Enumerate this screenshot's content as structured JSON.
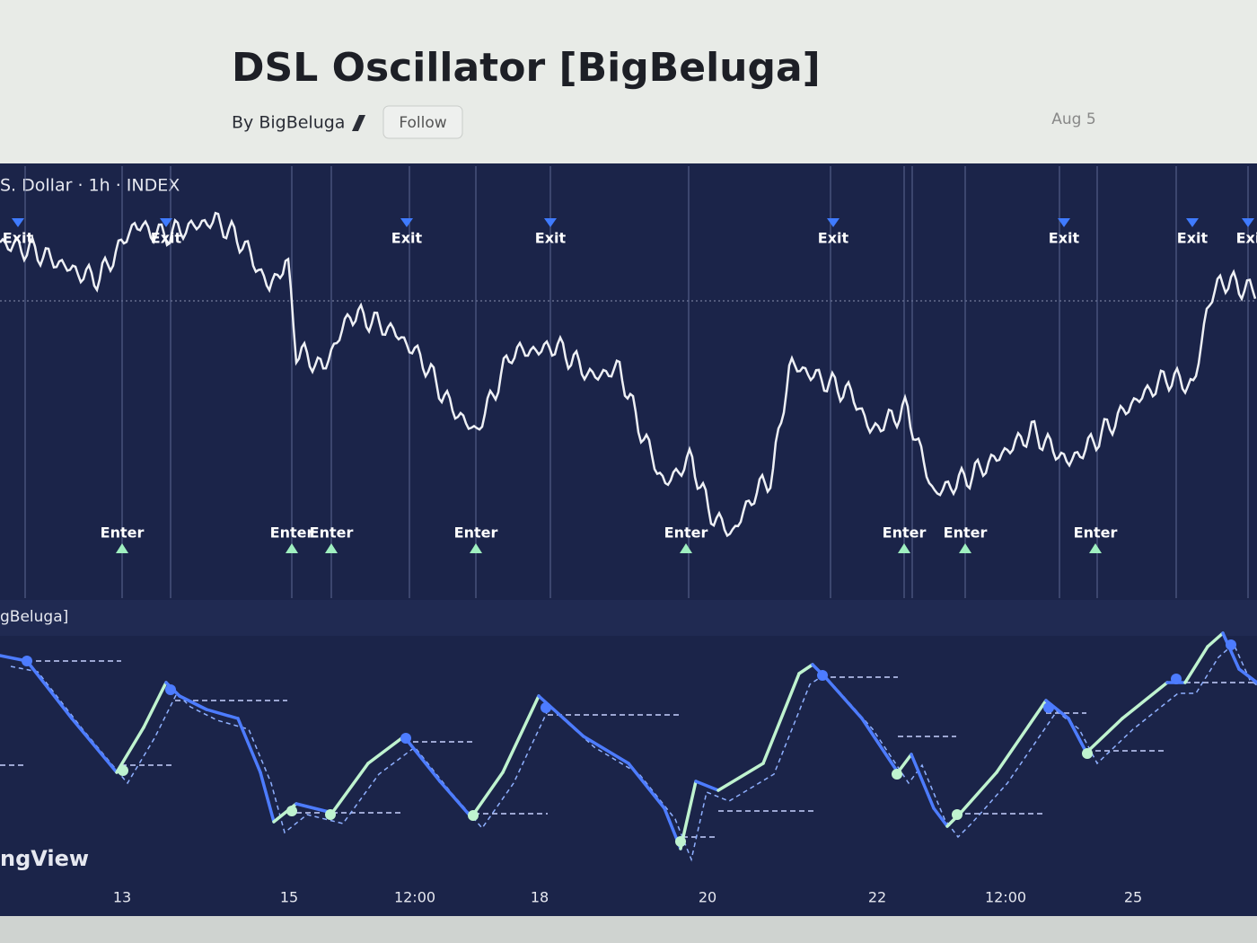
{
  "header": {
    "title": "DSL Oscillator [BigBeluga]",
    "author": "By BigBeluga",
    "follow": "Follow",
    "date": "Aug 5"
  },
  "chart": {
    "symbol": "S. Dollar · 1h · INDEX",
    "indicator": "gBeluga]",
    "watermark": "ngView",
    "exits": [
      "Exit",
      "Exit",
      "Exit",
      "Exit",
      "Exit",
      "Exit",
      "Exit",
      "Exi"
    ],
    "enters": [
      "Enter",
      "Enter",
      "Enter",
      "Enter",
      "Enter",
      "Enter",
      "Enter",
      "Enter"
    ],
    "x_labels": [
      "13",
      "15",
      "12:00",
      "18",
      "20",
      "22",
      "12:00",
      "25"
    ]
  }
}
